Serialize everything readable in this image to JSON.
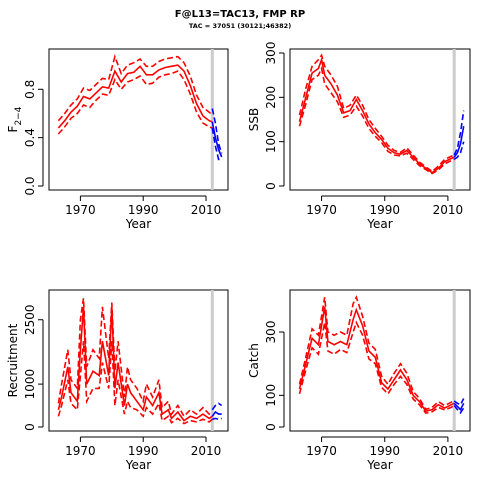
{
  "title": "F@L13=TAC13, FMP RP",
  "subtitle": "TAC = 37051 (30121;46382)",
  "colors": {
    "historical": "#ff0000",
    "projection": "#0000ff",
    "reference": "#cccccc"
  },
  "chart_data": [
    {
      "id": "F",
      "type": "line",
      "xlabel": "Year",
      "ylabel_main": "F",
      "ylabel_sub": "2−4",
      "xlim": [
        1960,
        2017
      ],
      "ylim": [
        0,
        1.1
      ],
      "xticks": [
        "1970",
        "1990",
        "2010"
      ],
      "yticks": [
        "0.0",
        "0.4",
        "0.8"
      ],
      "ref_year": 2012,
      "historical": {
        "x": [
          1963,
          1965,
          1967,
          1969,
          1971,
          1973,
          1975,
          1977,
          1979,
          1981,
          1983,
          1985,
          1987,
          1989,
          1991,
          1993,
          1995,
          1997,
          1999,
          2001,
          2003,
          2005,
          2007,
          2009,
          2011,
          2012
        ],
        "median": [
          0.48,
          0.54,
          0.61,
          0.66,
          0.74,
          0.72,
          0.77,
          0.82,
          0.81,
          0.95,
          0.86,
          0.93,
          0.94,
          0.99,
          0.92,
          0.92,
          0.96,
          0.98,
          0.99,
          1.0,
          0.95,
          0.83,
          0.68,
          0.58,
          0.54,
          0.53
        ],
        "lower": [
          0.43,
          0.49,
          0.56,
          0.6,
          0.67,
          0.65,
          0.71,
          0.76,
          0.75,
          0.88,
          0.8,
          0.86,
          0.88,
          0.91,
          0.84,
          0.85,
          0.9,
          0.92,
          0.93,
          0.95,
          0.88,
          0.76,
          0.61,
          0.52,
          0.49,
          0.48
        ],
        "upper": [
          0.54,
          0.6,
          0.67,
          0.72,
          0.81,
          0.79,
          0.84,
          0.89,
          0.88,
          1.07,
          0.93,
          1.0,
          1.02,
          1.05,
          0.99,
          0.99,
          1.03,
          1.05,
          1.06,
          1.07,
          1.02,
          0.91,
          0.75,
          0.65,
          0.61,
          0.59
        ]
      },
      "projection": {
        "x": [
          2012,
          2013,
          2014,
          2015
        ],
        "median": [
          0.53,
          0.4,
          0.3,
          0.24
        ],
        "lower": [
          0.48,
          0.33,
          0.22,
          0.22
        ],
        "upper": [
          0.64,
          0.52,
          0.35,
          0.27
        ]
      }
    },
    {
      "id": "SSB",
      "type": "line",
      "xlabel": "Year",
      "ylabel_main": "SSB",
      "ylabel_sub": "",
      "xlim": [
        1960,
        2017
      ],
      "ylim": [
        0,
        300
      ],
      "xticks": [
        "1970",
        "1990",
        "2010"
      ],
      "yticks": [
        "0",
        "100",
        "200",
        "300"
      ],
      "ref_year": 2012,
      "historical": {
        "x": [
          1963,
          1965,
          1967,
          1969,
          1970,
          1971,
          1973,
          1975,
          1977,
          1979,
          1981,
          1983,
          1985,
          1987,
          1989,
          1991,
          1993,
          1995,
          1997,
          1999,
          2001,
          2003,
          2005,
          2007,
          2009,
          2011,
          2012
        ],
        "median": [
          145,
          200,
          255,
          265,
          285,
          250,
          230,
          205,
          165,
          170,
          195,
          170,
          140,
          120,
          105,
          85,
          75,
          72,
          80,
          65,
          50,
          40,
          30,
          40,
          55,
          62,
          65
        ],
        "lower": [
          135,
          185,
          240,
          250,
          265,
          230,
          210,
          190,
          155,
          160,
          180,
          158,
          130,
          112,
          98,
          78,
          70,
          68,
          74,
          60,
          46,
          37,
          28,
          36,
          50,
          57,
          60
        ],
        "upper": [
          160,
          220,
          270,
          285,
          295,
          270,
          250,
          225,
          175,
          182,
          205,
          182,
          150,
          130,
          112,
          92,
          80,
          76,
          86,
          70,
          54,
          43,
          33,
          45,
          60,
          67,
          70
        ]
      },
      "projection": {
        "x": [
          2012,
          2013,
          2014,
          2015
        ],
        "median": [
          65,
          75,
          95,
          135
        ],
        "lower": [
          60,
          65,
          75,
          100
        ],
        "upper": [
          70,
          85,
          120,
          170
        ]
      }
    },
    {
      "id": "Recruitment",
      "type": "line",
      "xlabel": "Year",
      "ylabel_main": "Recruitment",
      "ylabel_sub": "",
      "xlim": [
        1960,
        2017
      ],
      "ylim": [
        0,
        3100
      ],
      "xticks": [
        "1970",
        "1990",
        "2010"
      ],
      "yticks": [
        "0",
        "1000",
        "2500"
      ],
      "ref_year": 2012,
      "historical": {
        "x": [
          1963,
          1964,
          1966,
          1967,
          1969,
          1970,
          1971,
          1972,
          1974,
          1976,
          1977,
          1979,
          1980,
          1981,
          1982,
          1984,
          1985,
          1986,
          1988,
          1990,
          1991,
          1993,
          1995,
          1996,
          1998,
          1999,
          2001,
          2003,
          2005,
          2007,
          2009,
          2011,
          2012
        ],
        "median": [
          400,
          700,
          1400,
          800,
          600,
          1800,
          2800,
          1000,
          1300,
          1200,
          2000,
          1200,
          2800,
          900,
          1500,
          500,
          1000,
          800,
          600,
          400,
          700,
          500,
          800,
          300,
          400,
          200,
          350,
          150,
          250,
          200,
          300,
          200,
          250
        ],
        "lower": [
          250,
          500,
          1100,
          550,
          400,
          1200,
          2000,
          600,
          900,
          900,
          1500,
          900,
          2000,
          500,
          1100,
          300,
          600,
          450,
          400,
          250,
          450,
          300,
          550,
          150,
          250,
          100,
          200,
          80,
          150,
          120,
          180,
          120,
          180
        ],
        "upper": [
          550,
          1000,
          1800,
          1100,
          900,
          2500,
          3000,
          1400,
          1800,
          1600,
          2800,
          1600,
          2900,
          1300,
          2000,
          700,
          1400,
          1100,
          900,
          600,
          1000,
          700,
          1100,
          450,
          600,
          300,
          500,
          250,
          400,
          300,
          450,
          300,
          350
        ]
      },
      "projection": {
        "x": [
          2012,
          2013,
          2014,
          2015
        ],
        "median": [
          250,
          350,
          300,
          300
        ],
        "lower": [
          180,
          200,
          180,
          200
        ],
        "upper": [
          400,
          500,
          550,
          500
        ]
      }
    },
    {
      "id": "Catch",
      "type": "line",
      "xlabel": "Year",
      "ylabel_main": "Catch",
      "ylabel_sub": "",
      "xlim": [
        1960,
        2017
      ],
      "ylim": [
        0,
        420
      ],
      "xticks": [
        "1970",
        "1990",
        "2010"
      ],
      "yticks": [
        "0",
        "100",
        "300"
      ],
      "ref_year": 2012,
      "historical": {
        "x": [
          1963,
          1965,
          1967,
          1969,
          1971,
          1972,
          1974,
          1976,
          1978,
          1980,
          1981,
          1983,
          1985,
          1987,
          1989,
          1991,
          1993,
          1995,
          1997,
          1999,
          2001,
          2003,
          2005,
          2007,
          2009,
          2011,
          2012
        ],
        "median": [
          120,
          200,
          280,
          260,
          380,
          270,
          260,
          270,
          260,
          340,
          370,
          320,
          240,
          220,
          140,
          120,
          150,
          180,
          150,
          100,
          80,
          50,
          55,
          70,
          60,
          70,
          75
        ],
        "lower": [
          105,
          180,
          250,
          230,
          330,
          240,
          230,
          245,
          235,
          300,
          330,
          290,
          215,
          200,
          125,
          105,
          135,
          160,
          135,
          88,
          70,
          44,
          48,
          62,
          54,
          62,
          68
        ],
        "upper": [
          135,
          220,
          310,
          290,
          410,
          300,
          290,
          300,
          290,
          390,
          410,
          350,
          265,
          245,
          160,
          135,
          170,
          200,
          170,
          112,
          90,
          56,
          62,
          80,
          68,
          78,
          82
        ]
      },
      "projection": {
        "x": [
          2012,
          2013,
          2014,
          2015
        ],
        "median": [
          75,
          65,
          55,
          75
        ],
        "lower": [
          68,
          55,
          45,
          60
        ],
        "upper": [
          82,
          75,
          70,
          90
        ]
      }
    }
  ]
}
